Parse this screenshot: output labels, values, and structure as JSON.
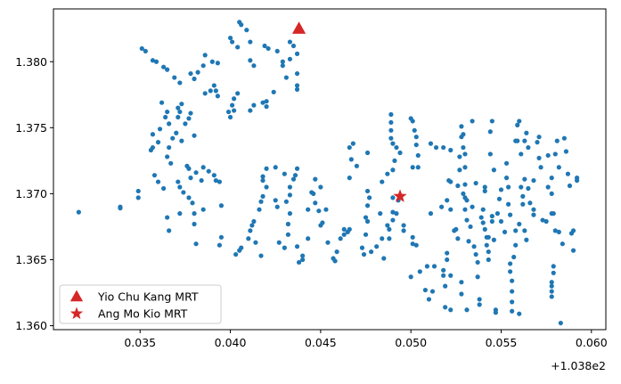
{
  "chart_data": {
    "type": "scatter",
    "title": "",
    "xlabel": "",
    "ylabel": "",
    "x_offset_label": "+1.038e2",
    "xlim": [
      103.8302,
      103.8608
    ],
    "ylim": [
      1.3597,
      1.384
    ],
    "xticks": [
      103.835,
      103.84,
      103.845,
      103.85,
      103.855,
      103.86
    ],
    "xtick_labels": [
      "0.035",
      "0.040",
      "0.045",
      "0.050",
      "0.055",
      "0.060"
    ],
    "yticks": [
      1.36,
      1.365,
      1.37,
      1.375,
      1.38
    ],
    "ytick_labels": [
      "1.360",
      "1.365",
      "1.370",
      "1.375",
      "1.380"
    ],
    "grid": false,
    "legend_position": "lower-left",
    "colors": {
      "points": "#1f77b4",
      "markers": "#d62728"
    },
    "markers": [
      {
        "name": "Yio Chu Kang MRT",
        "shape": "triangle",
        "x": 103.8438,
        "y": 1.3825
      },
      {
        "name": "Ang Mo Kio MRT",
        "shape": "star",
        "x": 103.8494,
        "y": 1.3698
      }
    ],
    "points": [
      [
        103.8351,
        1.381
      ],
      [
        103.8353,
        1.3808
      ],
      [
        103.8357,
        1.3801
      ],
      [
        103.8359,
        1.38
      ],
      [
        103.8363,
        1.3796
      ],
      [
        103.8365,
        1.3794
      ],
      [
        103.8369,
        1.3788
      ],
      [
        103.8372,
        1.3784
      ],
      [
        103.8378,
        1.3791
      ],
      [
        103.838,
        1.3787
      ],
      [
        103.8382,
        1.3792
      ],
      [
        103.8385,
        1.3797
      ],
      [
        103.8391,
        1.3782
      ],
      [
        103.8389,
        1.3778
      ],
      [
        103.8386,
        1.3776
      ],
      [
        103.8393,
        1.3799
      ],
      [
        103.8386,
        1.3805
      ],
      [
        103.839,
        1.38
      ],
      [
        103.84,
        1.3818
      ],
      [
        103.8401,
        1.3815
      ],
      [
        103.8404,
        1.3811
      ],
      [
        103.8405,
        1.383
      ],
      [
        103.8406,
        1.3828
      ],
      [
        103.8409,
        1.3824
      ],
      [
        103.8411,
        1.3815
      ],
      [
        103.8411,
        1.3801
      ],
      [
        103.8413,
        1.3797
      ],
      [
        103.8419,
        1.3812
      ],
      [
        103.8421,
        1.381
      ],
      [
        103.8426,
        1.3808
      ],
      [
        103.8429,
        1.3797
      ],
      [
        103.8429,
        1.38
      ],
      [
        103.8433,
        1.3815
      ],
      [
        103.8435,
        1.3812
      ],
      [
        103.8433,
        1.3802
      ],
      [
        103.8437,
        1.3791
      ],
      [
        103.8437,
        1.3806
      ],
      [
        103.8437,
        1.3782
      ],
      [
        103.8437,
        1.3779
      ],
      [
        103.8431,
        1.3788
      ],
      [
        103.8424,
        1.3777
      ],
      [
        103.842,
        1.377
      ],
      [
        103.8402,
        1.3772
      ],
      [
        103.8401,
        1.3767
      ],
      [
        103.8399,
        1.3762
      ],
      [
        103.84,
        1.3758
      ],
      [
        103.8402,
        1.3763
      ],
      [
        103.8404,
        1.3776
      ],
      [
        103.8413,
        1.3767
      ],
      [
        103.8411,
        1.3763
      ],
      [
        103.8418,
        1.3769
      ],
      [
        103.842,
        1.3766
      ],
      [
        103.8392,
        1.3778
      ],
      [
        103.8393,
        1.3774
      ],
      [
        103.8362,
        1.3769
      ],
      [
        103.8365,
        1.3762
      ],
      [
        103.8364,
        1.3758
      ],
      [
        103.8371,
        1.3765
      ],
      [
        103.8373,
        1.3768
      ],
      [
        103.8372,
        1.3762
      ],
      [
        103.8371,
        1.3758
      ],
      [
        103.8378,
        1.3761
      ],
      [
        103.8377,
        1.3757
      ],
      [
        103.8375,
        1.3753
      ],
      [
        103.8366,
        1.3753
      ],
      [
        103.8361,
        1.3749
      ],
      [
        103.8357,
        1.3745
      ],
      [
        103.836,
        1.3739
      ],
      [
        103.8357,
        1.3735
      ],
      [
        103.8356,
        1.3733
      ],
      [
        103.8366,
        1.3735
      ],
      [
        103.8368,
        1.3742
      ],
      [
        103.837,
        1.3746
      ],
      [
        103.8373,
        1.374
      ],
      [
        103.838,
        1.3744
      ],
      [
        103.8365,
        1.3728
      ],
      [
        103.8367,
        1.3723
      ],
      [
        103.8358,
        1.3714
      ],
      [
        103.836,
        1.3709
      ],
      [
        103.8363,
        1.3704
      ],
      [
        103.8376,
        1.3721
      ],
      [
        103.8377,
        1.3719
      ],
      [
        103.8378,
        1.3712
      ],
      [
        103.8381,
        1.3716
      ],
      [
        103.8385,
        1.372
      ],
      [
        103.8388,
        1.3717
      ],
      [
        103.8391,
        1.3714
      ],
      [
        103.8392,
        1.371
      ],
      [
        103.8384,
        1.371
      ],
      [
        103.8371,
        1.3709
      ],
      [
        103.8372,
        1.3705
      ],
      [
        103.8374,
        1.3701
      ],
      [
        103.8377,
        1.3697
      ],
      [
        103.8379,
        1.3693
      ],
      [
        103.838,
        1.3685
      ],
      [
        103.8385,
        1.3688
      ],
      [
        103.838,
        1.3677
      ],
      [
        103.8365,
        1.3682
      ],
      [
        103.8366,
        1.3672
      ],
      [
        103.8372,
        1.3685
      ],
      [
        103.8394,
        1.3709
      ],
      [
        103.8395,
        1.3691
      ],
      [
        103.8395,
        1.3667
      ],
      [
        103.8394,
        1.3661
      ],
      [
        103.8381,
        1.3662
      ],
      [
        103.8349,
        1.3702
      ],
      [
        103.8349,
        1.3697
      ],
      [
        103.8339,
        1.369
      ],
      [
        103.8339,
        1.3689
      ],
      [
        103.8316,
        1.3686
      ],
      [
        103.8403,
        1.3654
      ],
      [
        103.8405,
        1.3657
      ],
      [
        103.8406,
        1.3659
      ],
      [
        103.841,
        1.3666
      ],
      [
        103.8411,
        1.3672
      ],
      [
        103.8412,
        1.3676
      ],
      [
        103.8413,
        1.3679
      ],
      [
        103.8414,
        1.3663
      ],
      [
        103.8417,
        1.3653
      ],
      [
        103.8418,
        1.3713
      ],
      [
        103.8418,
        1.371
      ],
      [
        103.842,
        1.3705
      ],
      [
        103.8418,
        1.3698
      ],
      [
        103.8417,
        1.3694
      ],
      [
        103.8416,
        1.3688
      ],
      [
        103.842,
        1.3719
      ],
      [
        103.8425,
        1.3695
      ],
      [
        103.8426,
        1.369
      ],
      [
        103.8425,
        1.372
      ],
      [
        103.8427,
        1.3663
      ],
      [
        103.843,
        1.3659
      ],
      [
        103.843,
        1.3715
      ],
      [
        103.8433,
        1.3705
      ],
      [
        103.8433,
        1.3699
      ],
      [
        103.8431,
        1.3694
      ],
      [
        103.8433,
        1.3685
      ],
      [
        103.8432,
        1.3677
      ],
      [
        103.8432,
        1.3669
      ],
      [
        103.8435,
        1.3711
      ],
      [
        103.8437,
        1.3719
      ],
      [
        103.8436,
        1.3714
      ],
      [
        103.8437,
        1.366
      ],
      [
        103.844,
        1.3653
      ],
      [
        103.844,
        1.365
      ],
      [
        103.8438,
        1.3648
      ],
      [
        103.8443,
        1.3666
      ],
      [
        103.8443,
        1.3688
      ],
      [
        103.8445,
        1.3701
      ],
      [
        103.8446,
        1.37
      ],
      [
        103.8447,
        1.3711
      ],
      [
        103.8447,
        1.3693
      ],
      [
        103.8449,
        1.3687
      ],
      [
        103.845,
        1.3705
      ],
      [
        103.8451,
        1.3678
      ],
      [
        103.845,
        1.3676
      ],
      [
        103.8453,
        1.3688
      ],
      [
        103.8454,
        1.3663
      ],
      [
        103.8457,
        1.3651
      ],
      [
        103.8458,
        1.3649
      ],
      [
        103.8459,
        1.3656
      ],
      [
        103.8461,
        1.3666
      ],
      [
        103.8463,
        1.3669
      ],
      [
        103.8465,
        1.3671
      ],
      [
        103.8466,
        1.3673
      ],
      [
        103.8463,
        1.3673
      ],
      [
        103.8466,
        1.3712
      ],
      [
        103.8466,
        1.3735
      ],
      [
        103.8467,
        1.3726
      ],
      [
        103.8468,
        1.3738
      ],
      [
        103.847,
        1.3721
      ],
      [
        103.8473,
        1.3659
      ],
      [
        103.8474,
        1.3654
      ],
      [
        103.8475,
        1.3669
      ],
      [
        103.8476,
        1.3679
      ],
      [
        103.8475,
        1.3682
      ],
      [
        103.8476,
        1.3691
      ],
      [
        103.8477,
        1.3697
      ],
      [
        103.8476,
        1.3702
      ],
      [
        103.8476,
        1.3731
      ],
      [
        103.8478,
        1.3656
      ],
      [
        103.8481,
        1.366
      ],
      [
        103.8485,
        1.3651
      ],
      [
        103.8483,
        1.3685
      ],
      [
        103.8484,
        1.3666
      ],
      [
        103.8484,
        1.3709
      ],
      [
        103.8487,
        1.3676
      ],
      [
        103.8488,
        1.3666
      ],
      [
        103.8488,
        1.3673
      ],
      [
        103.849,
        1.3697
      ],
      [
        103.849,
        1.3686
      ],
      [
        103.849,
        1.368
      ],
      [
        103.8492,
        1.3685
      ],
      [
        103.8496,
        1.3676
      ],
      [
        103.8496,
        1.3672
      ],
      [
        103.8493,
        1.3695
      ],
      [
        103.8487,
        1.3715
      ],
      [
        103.849,
        1.3718
      ],
      [
        103.8491,
        1.3725
      ],
      [
        103.8489,
        1.376
      ],
      [
        103.8489,
        1.3754
      ],
      [
        103.8489,
        1.3748
      ],
      [
        103.8489,
        1.3742
      ],
      [
        103.849,
        1.3738
      ],
      [
        103.8492,
        1.3735
      ],
      [
        103.8494,
        1.3731
      ],
      [
        103.85,
        1.3757
      ],
      [
        103.8501,
        1.3755
      ],
      [
        103.8502,
        1.3748
      ],
      [
        103.8503,
        1.3743
      ],
      [
        103.8503,
        1.3737
      ],
      [
        103.8504,
        1.3729
      ],
      [
        103.8504,
        1.372
      ],
      [
        103.8501,
        1.372
      ],
      [
        103.8501,
        1.3667
      ],
      [
        103.8501,
        1.3662
      ],
      [
        103.8503,
        1.3661
      ],
      [
        103.85,
        1.3637
      ],
      [
        103.8505,
        1.3641
      ],
      [
        103.8509,
        1.3645
      ],
      [
        103.8508,
        1.3627
      ],
      [
        103.851,
        1.362
      ],
      [
        103.8512,
        1.3626
      ],
      [
        103.8513,
        1.3645
      ],
      [
        103.8511,
        1.3685
      ],
      [
        103.8514,
        1.3735
      ],
      [
        103.8517,
        1.369
      ],
      [
        103.8518,
        1.3735
      ],
      [
        103.8518,
        1.3642
      ],
      [
        103.8518,
        1.3638
      ],
      [
        103.8519,
        1.363
      ],
      [
        103.8519,
        1.3614
      ],
      [
        103.852,
        1.365
      ],
      [
        103.852,
        1.3655
      ],
      [
        103.8521,
        1.371
      ],
      [
        103.8522,
        1.3709
      ],
      [
        103.8522,
        1.3688
      ],
      [
        103.8522,
        1.3612
      ],
      [
        103.8522,
        1.3638
      ],
      [
        103.852,
        1.3695
      ],
      [
        103.8525,
        1.3673
      ],
      [
        103.8526,
        1.3666
      ],
      [
        103.8528,
        1.3633
      ],
      [
        103.8528,
        1.3624
      ],
      [
        103.8524,
        1.3672
      ],
      [
        103.8526,
        1.3706
      ],
      [
        103.8527,
        1.3718
      ],
      [
        103.8527,
        1.3728
      ],
      [
        103.8528,
        1.3743
      ],
      [
        103.8528,
        1.3751
      ],
      [
        103.8529,
        1.3745
      ],
      [
        103.8529,
        1.3735
      ],
      [
        103.853,
        1.373
      ],
      [
        103.853,
        1.372
      ],
      [
        103.853,
        1.3707
      ],
      [
        103.853,
        1.3697
      ],
      [
        103.853,
        1.3688
      ],
      [
        103.8531,
        1.3695
      ],
      [
        103.8531,
        1.368
      ],
      [
        103.8532,
        1.3664
      ],
      [
        103.8533,
        1.3675
      ],
      [
        103.8534,
        1.3755
      ],
      [
        103.8534,
        1.369
      ],
      [
        103.8535,
        1.366
      ],
      [
        103.8536,
        1.3708
      ],
      [
        103.8536,
        1.3654
      ],
      [
        103.8537,
        1.3648
      ],
      [
        103.8537,
        1.3637
      ],
      [
        103.8538,
        1.362
      ],
      [
        103.8538,
        1.3616
      ],
      [
        103.8539,
        1.3682
      ],
      [
        103.854,
        1.3688
      ],
      [
        103.854,
        1.3678
      ],
      [
        103.8541,
        1.3705
      ],
      [
        103.8541,
        1.3702
      ],
      [
        103.8541,
        1.3673
      ],
      [
        103.8542,
        1.3667
      ],
      [
        103.8542,
        1.3661
      ],
      [
        103.8543,
        1.3656
      ],
      [
        103.8543,
        1.365
      ],
      [
        103.8543,
        1.3667
      ],
      [
        103.8544,
        1.3747
      ],
      [
        103.8544,
        1.373
      ],
      [
        103.8545,
        1.3755
      ],
      [
        103.8545,
        1.3683
      ],
      [
        103.8545,
        1.3679
      ],
      [
        103.8546,
        1.3665
      ],
      [
        103.8547,
        1.3612
      ],
      [
        103.8547,
        1.361
      ],
      [
        103.8548,
        1.3685
      ],
      [
        103.8549,
        1.3696
      ],
      [
        103.855,
        1.3703
      ],
      [
        103.855,
        1.3679
      ],
      [
        103.8552,
        1.3671
      ],
      [
        103.8553,
        1.3723
      ],
      [
        103.8553,
        1.3712
      ],
      [
        103.8554,
        1.3705
      ],
      [
        103.8554,
        1.3692
      ],
      [
        103.8555,
        1.3684
      ],
      [
        103.8555,
        1.3647
      ],
      [
        103.8555,
        1.3641
      ],
      [
        103.8556,
        1.3634
      ],
      [
        103.8556,
        1.3626
      ],
      [
        103.8556,
        1.3618
      ],
      [
        103.8556,
        1.3611
      ],
      [
        103.8557,
        1.3652
      ],
      [
        103.8558,
        1.3661
      ],
      [
        103.8558,
        1.3672
      ],
      [
        103.856,
        1.3677
      ],
      [
        103.8559,
        1.374
      ],
      [
        103.8559,
        1.3752
      ],
      [
        103.856,
        1.3755
      ],
      [
        103.8561,
        1.373
      ],
      [
        103.8561,
        1.3705
      ],
      [
        103.8562,
        1.3698
      ],
      [
        103.8562,
        1.3692
      ],
      [
        103.8563,
        1.374
      ],
      [
        103.8563,
        1.3711
      ],
      [
        103.8563,
        1.3672
      ],
      [
        103.8564,
        1.3746
      ],
      [
        103.8564,
        1.3665
      ],
      [
        103.8565,
        1.3735
      ],
      [
        103.8565,
        1.3704
      ],
      [
        103.8566,
        1.3693
      ],
      [
        103.8568,
        1.3688
      ],
      [
        103.8568,
        1.3684
      ],
      [
        103.8568,
        1.371
      ],
      [
        103.857,
        1.3739
      ],
      [
        103.8571,
        1.3743
      ],
      [
        103.8571,
        1.3727
      ],
      [
        103.8572,
        1.372
      ],
      [
        103.8573,
        1.368
      ],
      [
        103.8575,
        1.3679
      ],
      [
        103.8576,
        1.3729
      ],
      [
        103.8576,
        1.3705
      ],
      [
        103.8578,
        1.3712
      ],
      [
        103.8578,
        1.37
      ],
      [
        103.8578,
        1.3685
      ],
      [
        103.8579,
        1.3685
      ],
      [
        103.858,
        1.3672
      ],
      [
        103.8578,
        1.3633
      ],
      [
        103.8578,
        1.3626
      ],
      [
        103.8578,
        1.3622
      ],
      [
        103.8578,
        1.363
      ],
      [
        103.8579,
        1.364
      ],
      [
        103.8579,
        1.3645
      ],
      [
        103.858,
        1.373
      ],
      [
        103.8581,
        1.374
      ],
      [
        103.8582,
        1.372
      ],
      [
        103.8582,
        1.3671
      ],
      [
        103.8584,
        1.3662
      ],
      [
        103.8585,
        1.3742
      ],
      [
        103.8586,
        1.3732
      ],
      [
        103.8587,
        1.3715
      ],
      [
        103.8588,
        1.3706
      ],
      [
        103.8589,
        1.367
      ],
      [
        103.859,
        1.3657
      ],
      [
        103.859,
        1.3672
      ],
      [
        103.8592,
        1.3712
      ],
      [
        103.8592,
        1.371
      ],
      [
        103.8558,
        1.374
      ],
      [
        103.8529,
        1.37
      ],
      [
        103.8511,
        1.3738
      ],
      [
        103.8522,
        1.3733
      ],
      [
        103.8583,
        1.3602
      ],
      [
        103.856,
        1.3609
      ],
      [
        103.8531,
        1.3612
      ],
      [
        103.8546,
        1.3718
      ]
    ]
  }
}
